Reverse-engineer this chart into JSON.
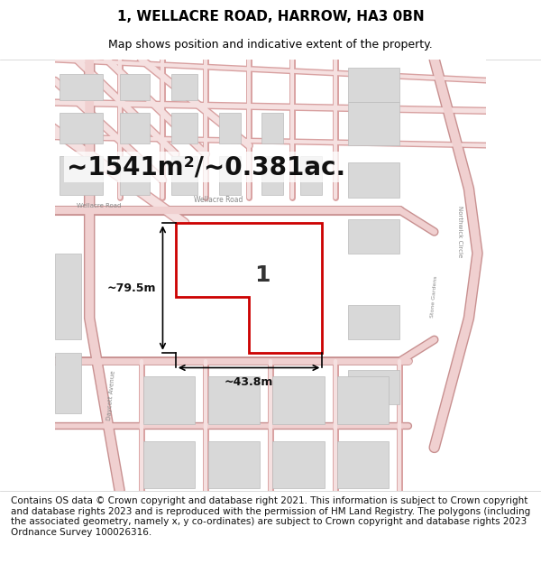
{
  "title": "1, WELLACRE ROAD, HARROW, HA3 0BN",
  "subtitle": "Map shows position and indicative extent of the property.",
  "area_text": "~1541m²/~0.381ac.",
  "dim_horizontal": "~43.8m",
  "dim_vertical": "~79.5m",
  "plot_number": "1",
  "footer": "Contains OS data © Crown copyright and database right 2021. This information is subject to Crown copyright and database rights 2023 and is reproduced with the permission of HM Land Registry. The polygons (including the associated geometry, namely x, y co-ordinates) are subject to Crown copyright and database rights 2023 Ordnance Survey 100026316.",
  "bg_color": "#ffffff",
  "map_bg": "#ffffff",
  "road_color": "#f5e0e0",
  "road_line_color": "#d09090",
  "highlight_color": "#cc0000",
  "block_color": "#d8d8d8",
  "block_edge": "#bbbbbb",
  "title_fontsize": 11,
  "subtitle_fontsize": 9,
  "area_fontsize": 22,
  "footer_fontsize": 7.5
}
